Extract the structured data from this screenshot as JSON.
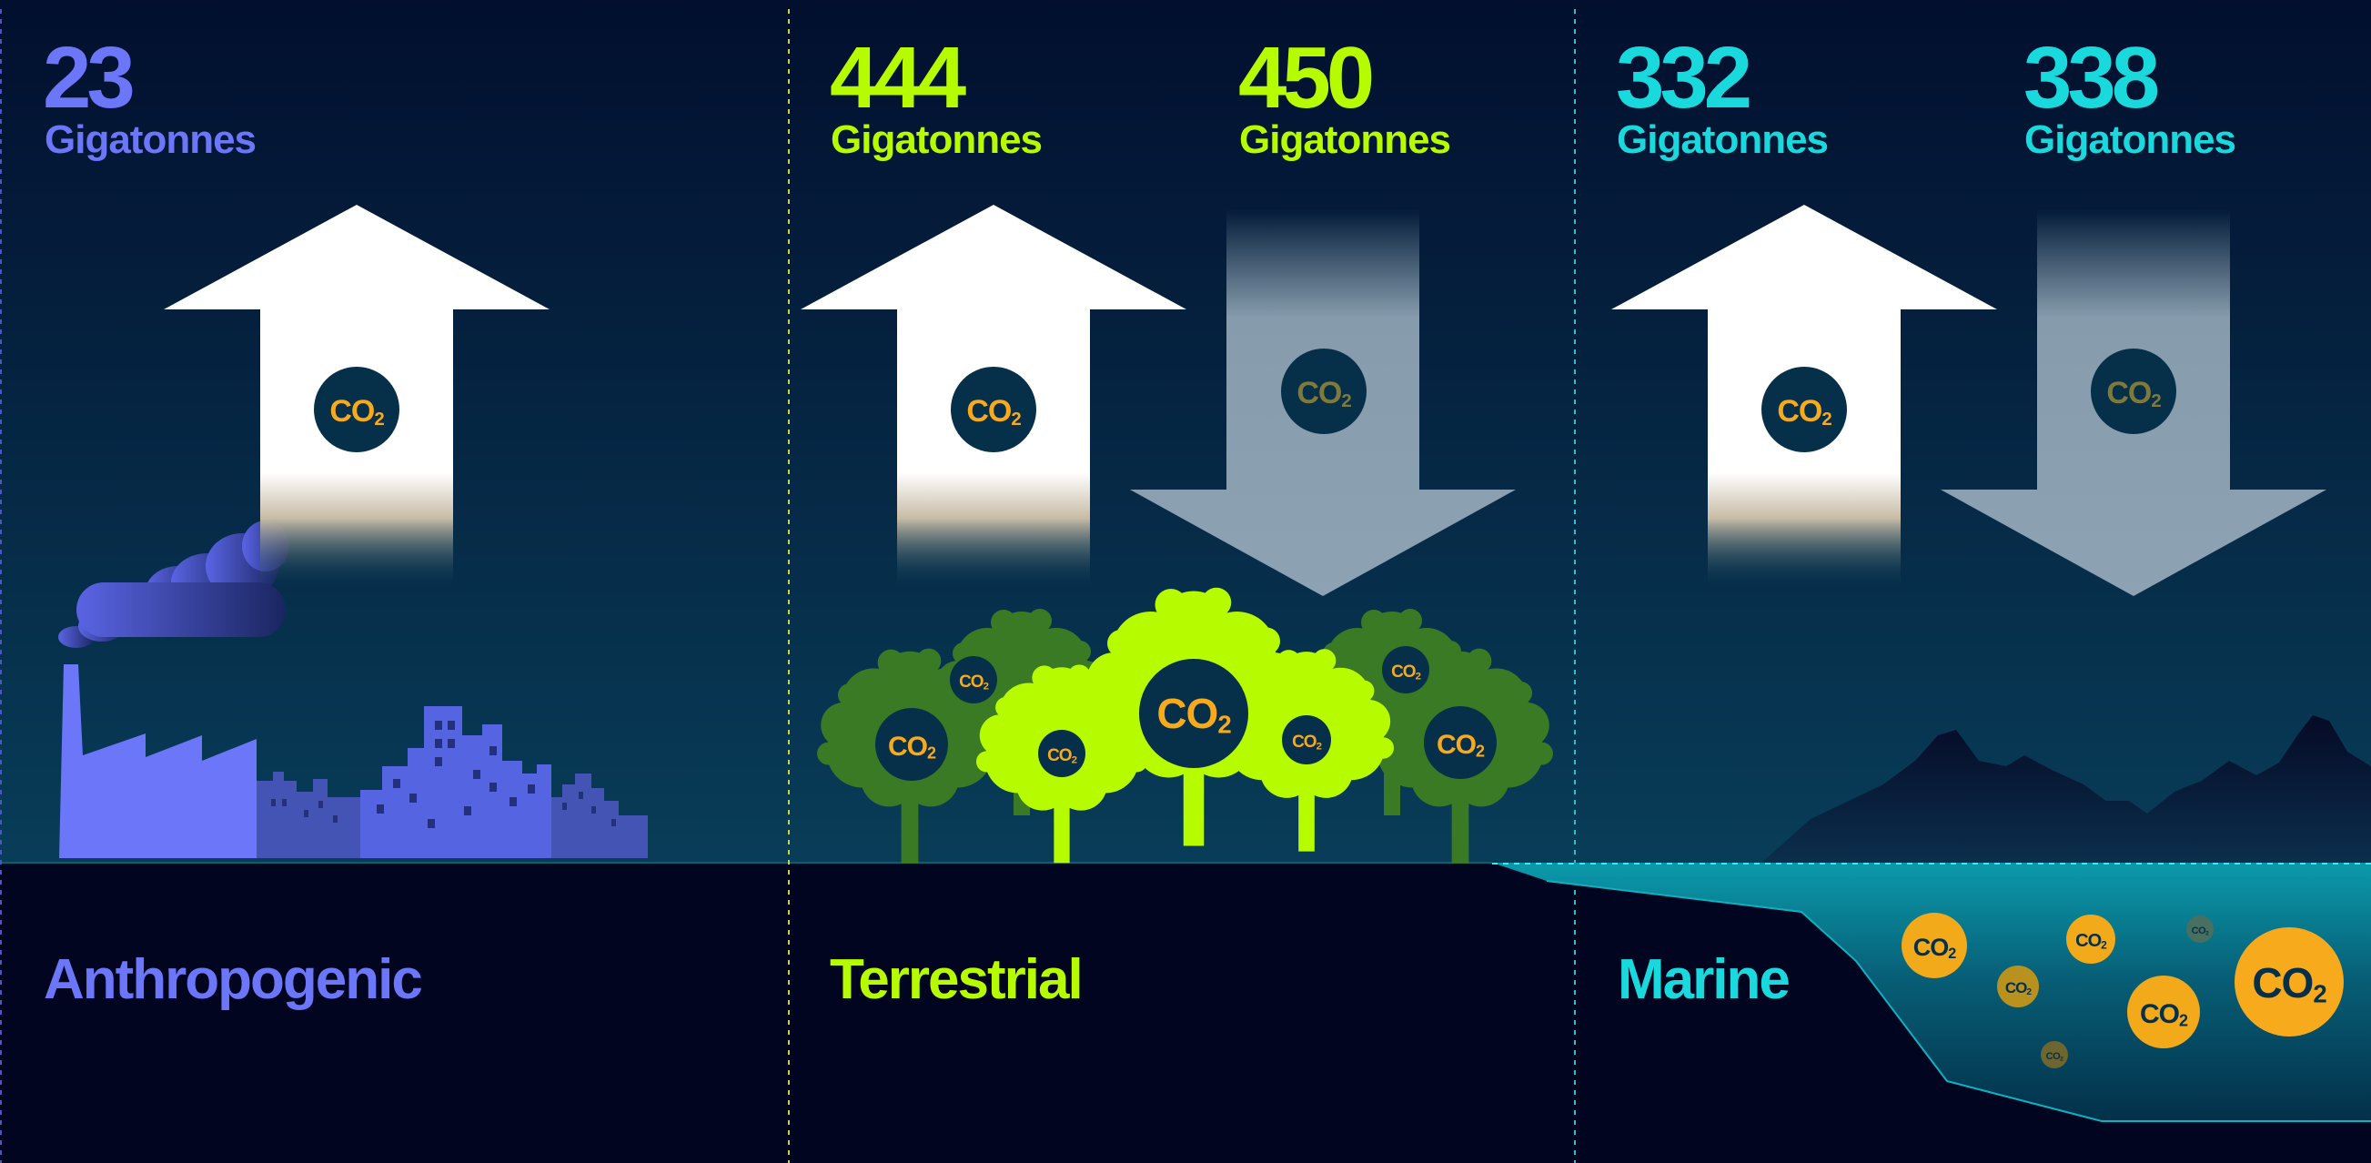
{
  "colors": {
    "anthropogenic": "#6b76f8",
    "terrestrial": "#b6fb00",
    "marine": "#1ad9dc",
    "co2_text": "#f7aa1c",
    "co2_badge": "#06304a",
    "sky_top": "#020f2e",
    "sky_bottom": "#083d58",
    "ground": "#020520"
  },
  "panels": [
    {
      "category": "Anthropogenic",
      "flows": [
        {
          "direction": "up",
          "value": "23",
          "unit": "Gigatonnes",
          "badge": "CO2"
        }
      ]
    },
    {
      "category": "Terrestrial",
      "flows": [
        {
          "direction": "up",
          "value": "444",
          "unit": "Gigatonnes",
          "badge": "CO2"
        },
        {
          "direction": "down",
          "value": "450",
          "unit": "Gigatonnes",
          "badge": "CO2"
        }
      ]
    },
    {
      "category": "Marine",
      "flows": [
        {
          "direction": "up",
          "value": "332",
          "unit": "Gigatonnes",
          "badge": "CO2"
        },
        {
          "direction": "down",
          "value": "338",
          "unit": "Gigatonnes",
          "badge": "CO2"
        }
      ]
    }
  ],
  "icons": [
    "factory-icon",
    "city-skyline-icon",
    "smoke-cloud-icon",
    "tree-icon",
    "mountain-icon",
    "ocean-icon",
    "co2-bubble-icon",
    "arrow-up-icon",
    "arrow-down-icon"
  ]
}
